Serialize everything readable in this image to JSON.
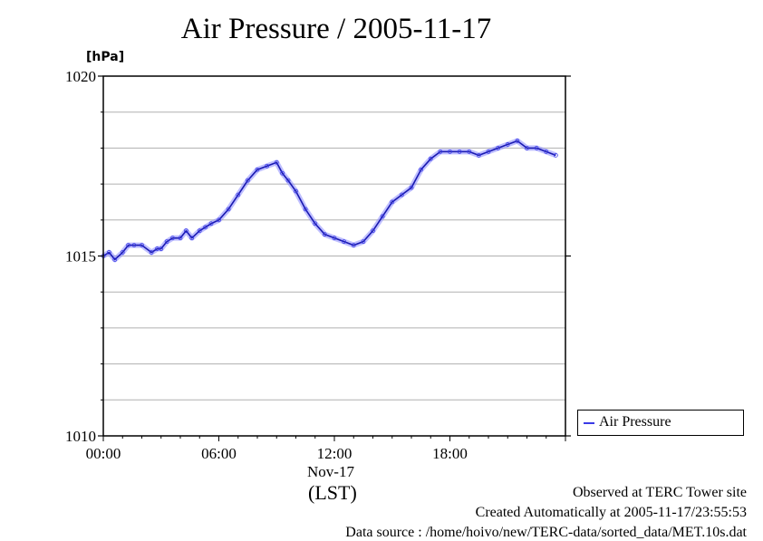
{
  "header": {
    "title": "Air Pressure / 2005-11-17",
    "unit": "[hPa]"
  },
  "axis": {
    "date_label": "Nov-17",
    "timezone_label": "(LST)"
  },
  "legend": {
    "label": "Air Pressure"
  },
  "footer": {
    "observed": "Observed at TERC Tower site",
    "created": "Created Automatically at 2005-11-17/23:55:53",
    "source": "Data source : /home/hoivo/new/TERC-data/sorted_data/MET.10s.dat"
  },
  "colors": {
    "series": "#3a3ae6",
    "marker": "#8a8aff",
    "grid": "#b0b0b0"
  },
  "chart_data": {
    "type": "line",
    "title": "Air Pressure / 2005-11-17",
    "ylabel": "[hPa]",
    "xlabel": "(LST)",
    "xlim": [
      0,
      24
    ],
    "ylim": [
      1010,
      1020
    ],
    "x_ticks": [
      {
        "value": 0,
        "label": "00:00"
      },
      {
        "value": 6,
        "label": "06:00"
      },
      {
        "value": 12,
        "label": "12:00"
      },
      {
        "value": 18,
        "label": "18:00"
      }
    ],
    "y_ticks": [
      {
        "value": 1010,
        "label": "1010"
      },
      {
        "value": 1015,
        "label": "1015"
      },
      {
        "value": 1020,
        "label": "1020"
      }
    ],
    "grid": true,
    "legend_position": "right",
    "series": [
      {
        "name": "Air Pressure",
        "x": [
          0,
          0.3,
          0.6,
          1.0,
          1.3,
          1.6,
          2.0,
          2.5,
          2.8,
          3.0,
          3.3,
          3.6,
          4.0,
          4.3,
          4.6,
          5.0,
          5.3,
          5.6,
          6.0,
          6.5,
          7.0,
          7.5,
          8.0,
          8.5,
          9.0,
          9.3,
          9.6,
          10.0,
          10.5,
          11.0,
          11.5,
          12.0,
          12.5,
          13.0,
          13.5,
          14.0,
          14.5,
          15.0,
          15.5,
          16.0,
          16.5,
          17.0,
          17.5,
          18.0,
          18.5,
          19.0,
          19.5,
          20.0,
          20.5,
          21.0,
          21.5,
          22.0,
          22.5,
          23.0,
          23.5
        ],
        "y": [
          1015.0,
          1015.1,
          1014.9,
          1015.1,
          1015.3,
          1015.3,
          1015.3,
          1015.1,
          1015.2,
          1015.2,
          1015.4,
          1015.5,
          1015.5,
          1015.7,
          1015.5,
          1015.7,
          1015.8,
          1015.9,
          1016.0,
          1016.3,
          1016.7,
          1017.1,
          1017.4,
          1017.5,
          1017.6,
          1017.3,
          1017.1,
          1016.8,
          1016.3,
          1015.9,
          1015.6,
          1015.5,
          1015.4,
          1015.3,
          1015.4,
          1015.7,
          1016.1,
          1016.5,
          1016.7,
          1016.9,
          1017.4,
          1017.7,
          1017.9,
          1017.9,
          1017.9,
          1017.9,
          1017.8,
          1017.9,
          1018.0,
          1018.1,
          1018.2,
          1018.0,
          1018.0,
          1017.9,
          1017.8
        ]
      }
    ]
  }
}
